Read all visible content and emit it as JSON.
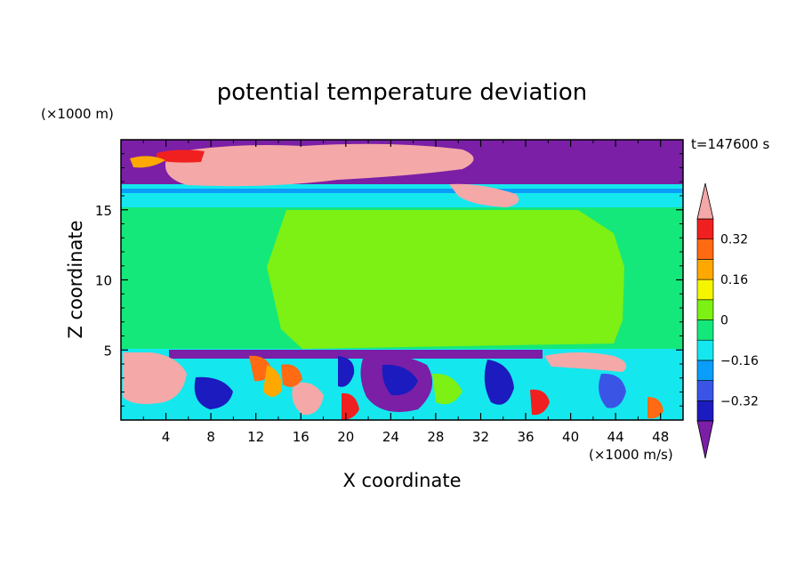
{
  "chart_data": {
    "type": "heatmap",
    "title": "potential temperature deviation",
    "xlabel": "X coordinate",
    "ylabel": "Z coordinate",
    "x_unit": "(×1000 m/s)",
    "y_unit": "(×1000 m)",
    "time_label": "t=147600 s",
    "xlim": [
      0,
      50
    ],
    "ylim": [
      0,
      20
    ],
    "x_ticks": [
      4,
      8,
      12,
      16,
      20,
      24,
      28,
      32,
      36,
      40,
      44,
      48
    ],
    "y_ticks": [
      5,
      10,
      15
    ],
    "colorbar": {
      "levels": [
        -0.4,
        -0.32,
        -0.24,
        -0.16,
        -0.08,
        0,
        0.08,
        0.16,
        0.24,
        0.32,
        0.4
      ],
      "labels": [
        "0.32",
        "0.16",
        "0",
        "−0.16",
        "−0.32"
      ],
      "label_values": [
        0.32,
        0.16,
        0,
        -0.16,
        -0.32
      ],
      "colors": {
        "below": "#7a1fa6",
        "bands": [
          "#1b1bbf",
          "#3a55e6",
          "#0b9dfa",
          "#14e8ee",
          "#14e87a",
          "#7df014",
          "#f5f500",
          "#ffa800",
          "#ff6a12",
          "#f02020"
        ],
        "above": "#f4a8a8"
      },
      "extend": "both"
    },
    "fields": {
      "upper_stratosphere": "#7a1fa6",
      "tropopause_band": "#14e8ee",
      "troposphere_background": "#14e87a",
      "central_warm_region": "#7df014",
      "strong_warm": "#f4a8a8",
      "strong_cold": "#1b1bbf"
    }
  }
}
